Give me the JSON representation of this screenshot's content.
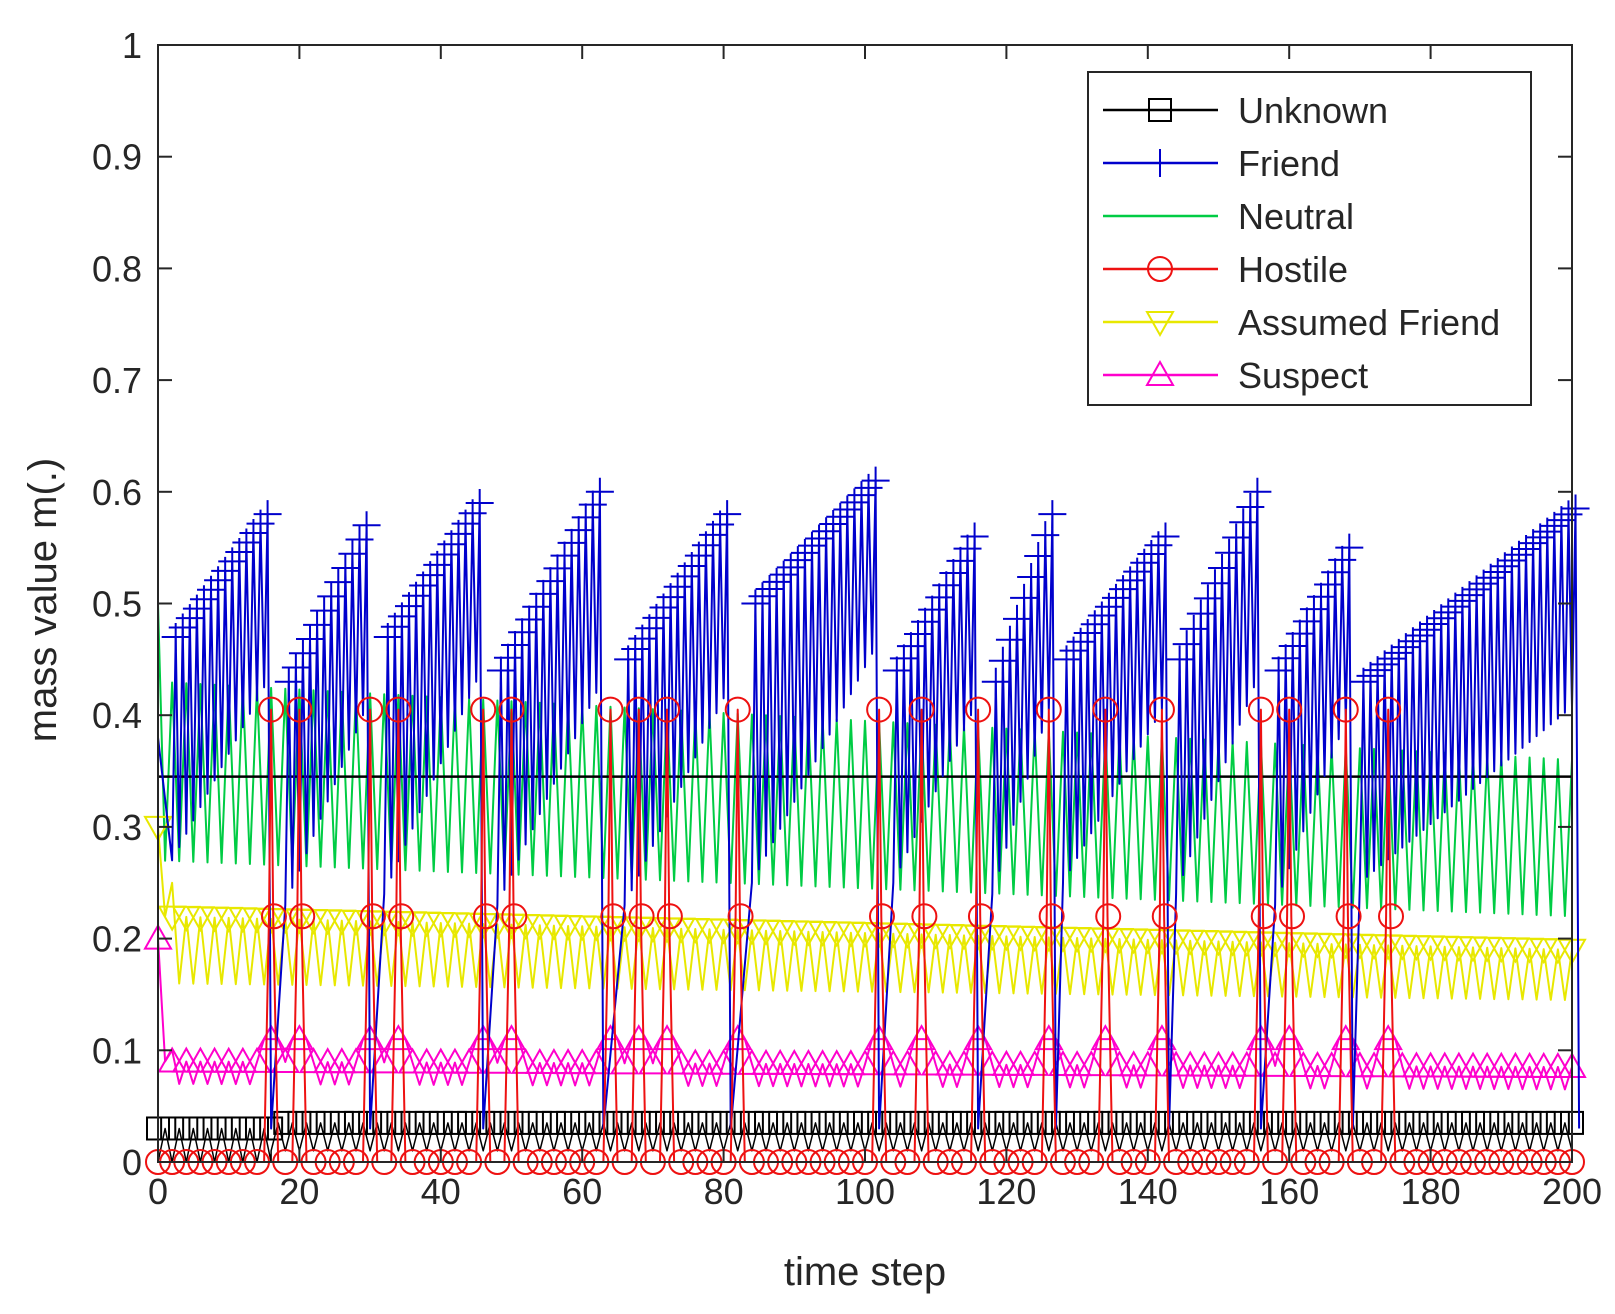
{
  "chart_data": {
    "type": "line",
    "title": "",
    "xlabel": "time step",
    "ylabel": "mass value m(.)",
    "xlim": [
      0,
      200
    ],
    "ylim": [
      0,
      1
    ],
    "xticks": [
      0,
      20,
      40,
      60,
      80,
      100,
      120,
      140,
      160,
      180,
      200
    ],
    "yticks": [
      0,
      0.1,
      0.2,
      0.3,
      0.4,
      0.5,
      0.6,
      0.7,
      0.8,
      0.9,
      1
    ],
    "ytick_labels": [
      "0",
      "0.1",
      "0.2",
      "0.3",
      "0.4",
      "0.5",
      "0.6",
      "0.7",
      "0.8",
      "0.9",
      "1"
    ],
    "xtick_labels": [
      "0",
      "20",
      "40",
      "60",
      "80",
      "100",
      "120",
      "140",
      "160",
      "180",
      "200"
    ],
    "grid": false,
    "legend_position": "top-right",
    "hostile_spikes": [
      16,
      20,
      30,
      34,
      46,
      50,
      64,
      68,
      72,
      82,
      102,
      108,
      116,
      126,
      134,
      142,
      156,
      160,
      168,
      174
    ],
    "series": [
      {
        "name": "Unknown",
        "color": "#000000",
        "marker": "square",
        "draw": "sawtooth",
        "segments": [
          {
            "from": 0,
            "to": 16,
            "bottom": 0.0,
            "top": 0.03
          },
          {
            "from": 16,
            "to": 200,
            "bottom": 0.01,
            "top": 0.035
          }
        ],
        "constant_line": 0.345
      },
      {
        "name": "Friend",
        "color": "#0000cc",
        "marker": "plus",
        "draw": "ramps",
        "ramps": [
          {
            "from": 2,
            "to": 15,
            "base": 0.27,
            "start": 0.47,
            "end": 0.58
          },
          {
            "from": 18,
            "to": 29,
            "base": 0.23,
            "start": 0.43,
            "end": 0.57
          },
          {
            "from": 32,
            "to": 45,
            "base": 0.24,
            "start": 0.47,
            "end": 0.59
          },
          {
            "from": 48,
            "to": 62,
            "base": 0.23,
            "start": 0.44,
            "end": 0.6
          },
          {
            "from": 66,
            "to": 80,
            "base": 0.23,
            "start": 0.45,
            "end": 0.58
          },
          {
            "from": 84,
            "to": 101,
            "base": 0.25,
            "start": 0.5,
            "end": 0.61
          },
          {
            "from": 104,
            "to": 115,
            "base": 0.25,
            "start": 0.44,
            "end": 0.56
          },
          {
            "from": 118,
            "to": 126,
            "base": 0.24,
            "start": 0.43,
            "end": 0.58
          },
          {
            "from": 128,
            "to": 142,
            "base": 0.25,
            "start": 0.45,
            "end": 0.56
          },
          {
            "from": 144,
            "to": 155,
            "base": 0.24,
            "start": 0.45,
            "end": 0.6
          },
          {
            "from": 158,
            "to": 168,
            "base": 0.23,
            "start": 0.44,
            "end": 0.55
          },
          {
            "from": 170,
            "to": 200,
            "base": 0.25,
            "start": 0.43,
            "end": 0.585
          }
        ]
      },
      {
        "name": "Neutral",
        "color": "#00cc44",
        "marker": "none",
        "draw": "oscillation",
        "start_value": 0.5,
        "upper": [
          0.43,
          0.36
        ],
        "lower": [
          0.27,
          0.22
        ]
      },
      {
        "name": "Hostile",
        "color": "#ee1111",
        "marker": "circle",
        "draw": "spikes",
        "baseline": 0.0,
        "peak": 0.405,
        "mid": 0.22
      },
      {
        "name": "Assumed Friend",
        "color": "#e8e800",
        "marker": "triangle-down",
        "draw": "oscillation",
        "start_value": 0.3,
        "upper": [
          0.22,
          0.19
        ],
        "lower": [
          0.16,
          0.145
        ]
      },
      {
        "name": "Suspect",
        "color": "#ff00cc",
        "marker": "triangle-up",
        "draw": "oscillation",
        "start_value": 0.2,
        "upper": [
          0.09,
          0.085
        ],
        "lower": [
          0.07,
          0.065
        ],
        "bumps": 0.11
      }
    ]
  }
}
